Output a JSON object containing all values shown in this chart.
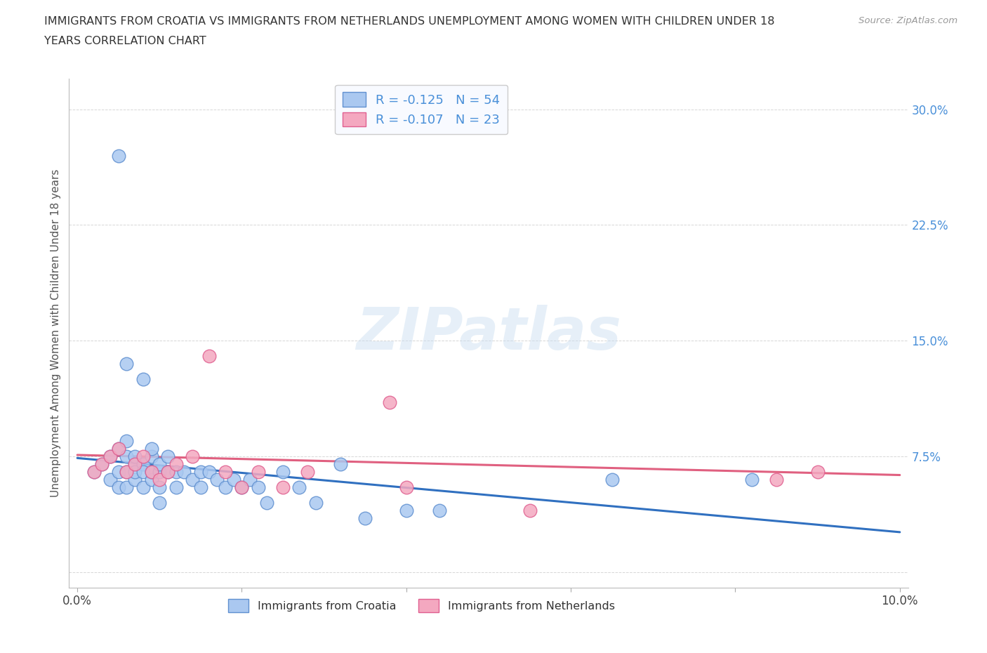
{
  "title_line1": "IMMIGRANTS FROM CROATIA VS IMMIGRANTS FROM NETHERLANDS UNEMPLOYMENT AMONG WOMEN WITH CHILDREN UNDER 18",
  "title_line2": "YEARS CORRELATION CHART",
  "source_text": "Source: ZipAtlas.com",
  "ylabel": "Unemployment Among Women with Children Under 18 years",
  "xlim": [
    -0.001,
    0.101
  ],
  "ylim": [
    -0.01,
    0.32
  ],
  "xtick_positions": [
    0.0,
    0.02,
    0.04,
    0.06,
    0.08,
    0.1
  ],
  "xticklabels": [
    "0.0%",
    "",
    "",
    "",
    "",
    "10.0%"
  ],
  "ytick_positions": [
    0.0,
    0.075,
    0.15,
    0.225,
    0.3
  ],
  "yticklabels": [
    "",
    "7.5%",
    "15.0%",
    "22.5%",
    "30.0%"
  ],
  "croatia_color": "#aac8f0",
  "netherlands_color": "#f4a8c0",
  "croatia_edge_color": "#6090d0",
  "netherlands_edge_color": "#e06090",
  "trendline_croatia_color": "#3070c0",
  "trendline_netherlands_color": "#e06080",
  "legend_facecolor": "#f8faff",
  "legend_edgecolor": "#cccccc",
  "r_croatia": -0.125,
  "n_croatia": 54,
  "r_netherlands": -0.107,
  "n_netherlands": 23,
  "watermark_text": "ZIPatlas",
  "background_color": "#ffffff",
  "grid_color": "#cccccc",
  "croatia_trend_x": [
    0.0,
    0.1
  ],
  "croatia_trend_y": [
    0.074,
    0.026
  ],
  "netherlands_trend_x": [
    0.0,
    0.1
  ],
  "netherlands_trend_y": [
    0.076,
    0.063
  ],
  "croatia_x": [
    0.002,
    0.003,
    0.004,
    0.004,
    0.005,
    0.005,
    0.005,
    0.006,
    0.006,
    0.006,
    0.006,
    0.007,
    0.007,
    0.007,
    0.007,
    0.008,
    0.008,
    0.008,
    0.009,
    0.009,
    0.009,
    0.009,
    0.01,
    0.01,
    0.01,
    0.011,
    0.011,
    0.012,
    0.012,
    0.013,
    0.014,
    0.015,
    0.015,
    0.016,
    0.017,
    0.018,
    0.019,
    0.02,
    0.021,
    0.022,
    0.023,
    0.025,
    0.027,
    0.029,
    0.032,
    0.035,
    0.04,
    0.005,
    0.006,
    0.008,
    0.01,
    0.044,
    0.065,
    0.082
  ],
  "croatia_y": [
    0.065,
    0.07,
    0.075,
    0.06,
    0.08,
    0.065,
    0.055,
    0.085,
    0.055,
    0.065,
    0.075,
    0.07,
    0.06,
    0.075,
    0.065,
    0.07,
    0.055,
    0.065,
    0.06,
    0.075,
    0.08,
    0.065,
    0.065,
    0.055,
    0.07,
    0.075,
    0.065,
    0.055,
    0.065,
    0.065,
    0.06,
    0.055,
    0.065,
    0.065,
    0.06,
    0.055,
    0.06,
    0.055,
    0.06,
    0.055,
    0.045,
    0.065,
    0.055,
    0.045,
    0.07,
    0.035,
    0.04,
    0.27,
    0.135,
    0.125,
    0.045,
    0.04,
    0.06,
    0.06
  ],
  "netherlands_x": [
    0.002,
    0.003,
    0.004,
    0.005,
    0.006,
    0.007,
    0.008,
    0.009,
    0.01,
    0.011,
    0.012,
    0.014,
    0.016,
    0.018,
    0.02,
    0.022,
    0.025,
    0.028,
    0.038,
    0.04,
    0.055,
    0.085,
    0.09
  ],
  "netherlands_y": [
    0.065,
    0.07,
    0.075,
    0.08,
    0.065,
    0.07,
    0.075,
    0.065,
    0.06,
    0.065,
    0.07,
    0.075,
    0.14,
    0.065,
    0.055,
    0.065,
    0.055,
    0.065,
    0.11,
    0.055,
    0.04,
    0.06,
    0.065
  ]
}
